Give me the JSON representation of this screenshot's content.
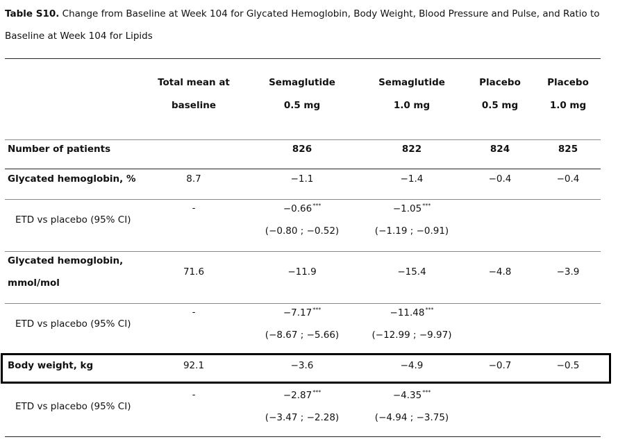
{
  "caption": {
    "label": "Table S10.",
    "text": " Change from Baseline at Week 104 for Glycated Hemoglobin, Body Weight, Blood Pressure and Pulse, and Ratio to Baseline at Week 104 for Lipids"
  },
  "columns": {
    "baseline": [
      "Total mean at",
      "baseline"
    ],
    "sema05": [
      "Semaglutide",
      "0.5 mg"
    ],
    "sema10": [
      "Semaglutide",
      "1.0 mg"
    ],
    "plac05": [
      "Placebo",
      "0.5 mg"
    ],
    "plac10": [
      "Placebo",
      "1.0 mg"
    ]
  },
  "rows": {
    "patients": {
      "label": "Number of patients",
      "baseline": "",
      "sema05": "826",
      "sema10": "822",
      "plac05": "824",
      "plac10": "825"
    },
    "hba1c_pct": {
      "label": "Glycated hemoglobin, %",
      "baseline": "8.7",
      "sema05": "−1.1",
      "sema10": "−1.4",
      "plac05": "−0.4",
      "plac10": "−0.4"
    },
    "hba1c_pct_etd": {
      "label": "ETD vs placebo (95% CI)",
      "baseline": "-",
      "sema05": "−0.66",
      "sema05_sig": "***",
      "sema05_ci": "(−0.80 ; −0.52)",
      "sema10": "−1.05",
      "sema10_sig": "***",
      "sema10_ci": "(−1.19 ; −0.91)"
    },
    "hba1c_mmol": {
      "label1": "Glycated hemoglobin,",
      "label2": "mmol/mol",
      "baseline": "71.6",
      "sema05": "−11.9",
      "sema10": "−15.4",
      "plac05": "−4.8",
      "plac10": "−3.9"
    },
    "hba1c_mmol_etd": {
      "label": "ETD vs placebo (95% CI)",
      "baseline": "-",
      "sema05": "−7.17",
      "sema05_sig": "***",
      "sema05_ci": "(−8.67 ; −5.66)",
      "sema10": "−11.48",
      "sema10_sig": "***",
      "sema10_ci": "(−12.99 ; −9.97)"
    },
    "body_weight": {
      "label": "Body weight, kg",
      "baseline": "92.1",
      "sema05": "−3.6",
      "sema10": "−4.9",
      "plac05": "−0.7",
      "plac10": "−0.5"
    },
    "body_weight_etd": {
      "label": "ETD vs placebo (95% CI)",
      "baseline": "-",
      "sema05": "−2.87",
      "sema05_sig": "***",
      "sema05_ci": "(−3.47 ; −2.28)",
      "sema10": "−4.35",
      "sema10_sig": "***",
      "sema10_ci": "(−4.94 ; −3.75)"
    }
  }
}
